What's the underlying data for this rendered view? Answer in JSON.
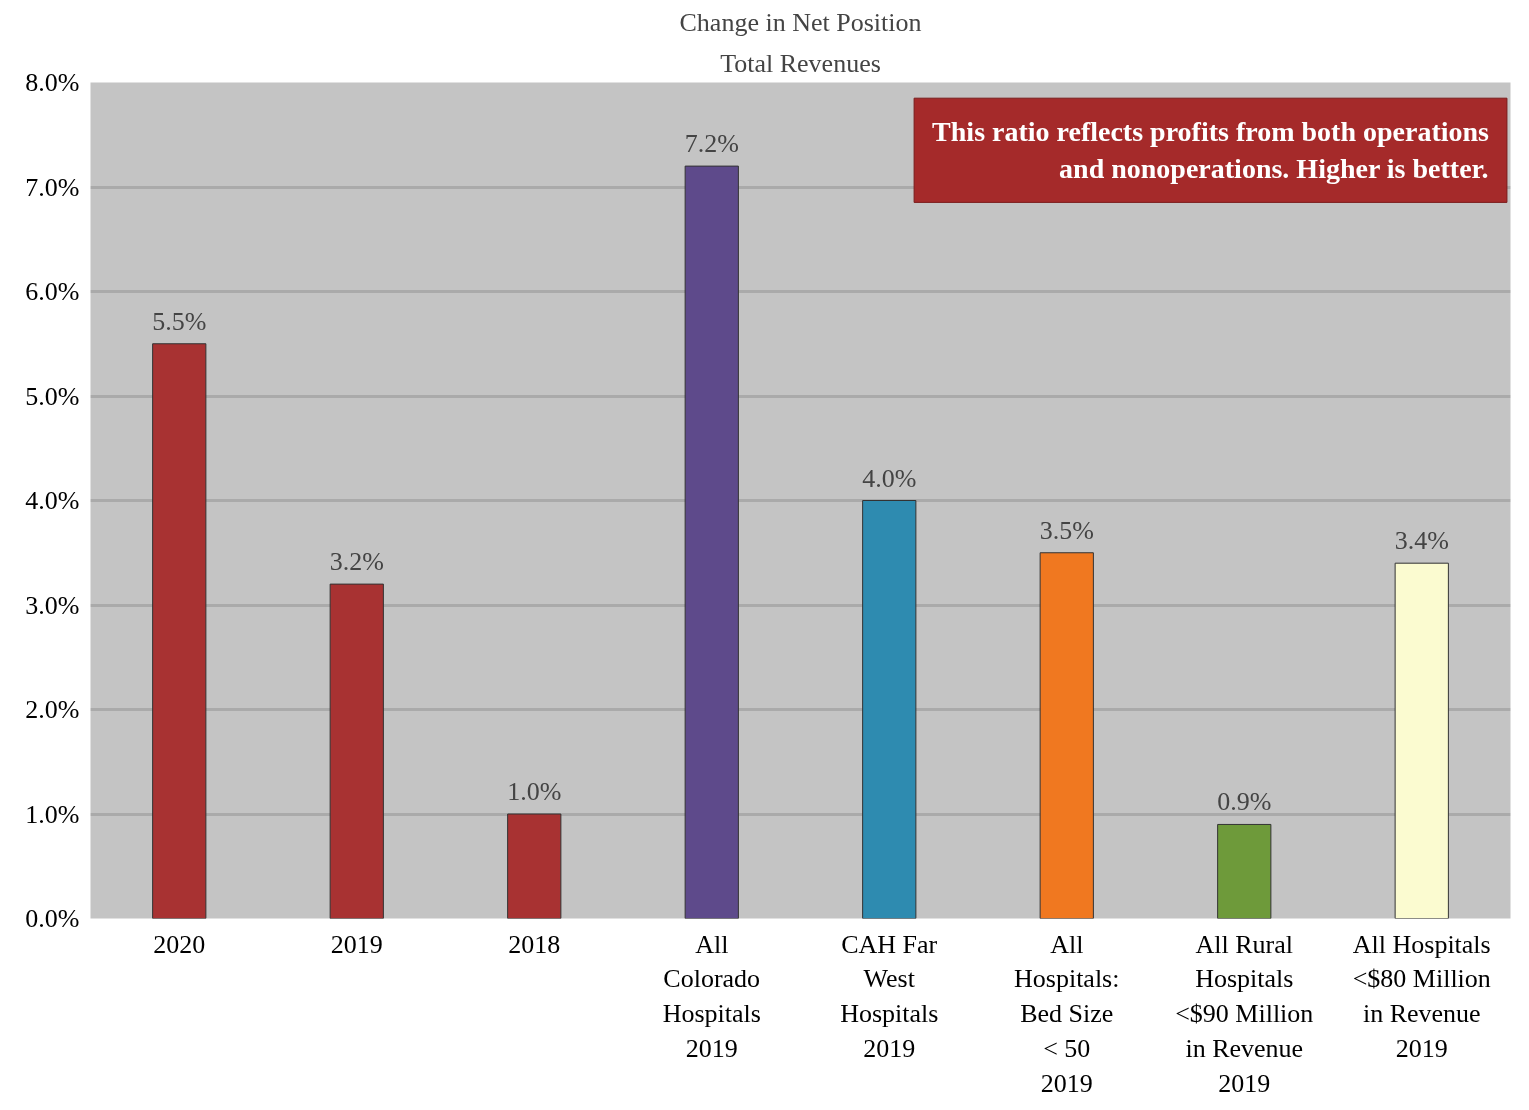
{
  "chart_data": {
    "type": "bar",
    "title": "Change in Net Position",
    "subtitle": "Total Revenues",
    "categories": [
      "2020",
      "2019",
      "2018",
      "All\nColorado\nHospitals\n2019",
      "CAH Far\nWest\nHospitals\n2019",
      "All\nHospitals:\nBed Size\n< 50\n2019",
      "All Rural\nHospitals\n<$90 Million\nin Revenue\n2019",
      "All Hospitals\n<$80 Million\nin Revenue\n2019"
    ],
    "values": [
      5.5,
      3.2,
      1.0,
      7.2,
      4.0,
      3.5,
      0.9,
      3.4
    ],
    "colors": [
      "#a83232",
      "#a83232",
      "#a83232",
      "#5e4a8b",
      "#2e8bb0",
      "#f07820",
      "#6e9a3a",
      "#fbfbd0"
    ],
    "value_labels": [
      "5.5%",
      "3.2%",
      "1.0%",
      "7.2%",
      "4.0%",
      "3.5%",
      "0.9%",
      "3.4%"
    ],
    "ylim": [
      0,
      8
    ],
    "yticks": [
      {
        "value": 0,
        "label": "0.0%"
      },
      {
        "value": 1,
        "label": "1.0%"
      },
      {
        "value": 2,
        "label": "2.0%"
      },
      {
        "value": 3,
        "label": "3.0%"
      },
      {
        "value": 4,
        "label": "4.0%"
      },
      {
        "value": 5,
        "label": "5.0%"
      },
      {
        "value": 6,
        "label": "6.0%"
      },
      {
        "value": 7,
        "label": "7.0%"
      },
      {
        "value": 8,
        "label": "8.0%"
      }
    ],
    "grid": "y",
    "annotations": [
      "This ratio reflects profits from both operations and nonoperations. Higher is better."
    ]
  }
}
